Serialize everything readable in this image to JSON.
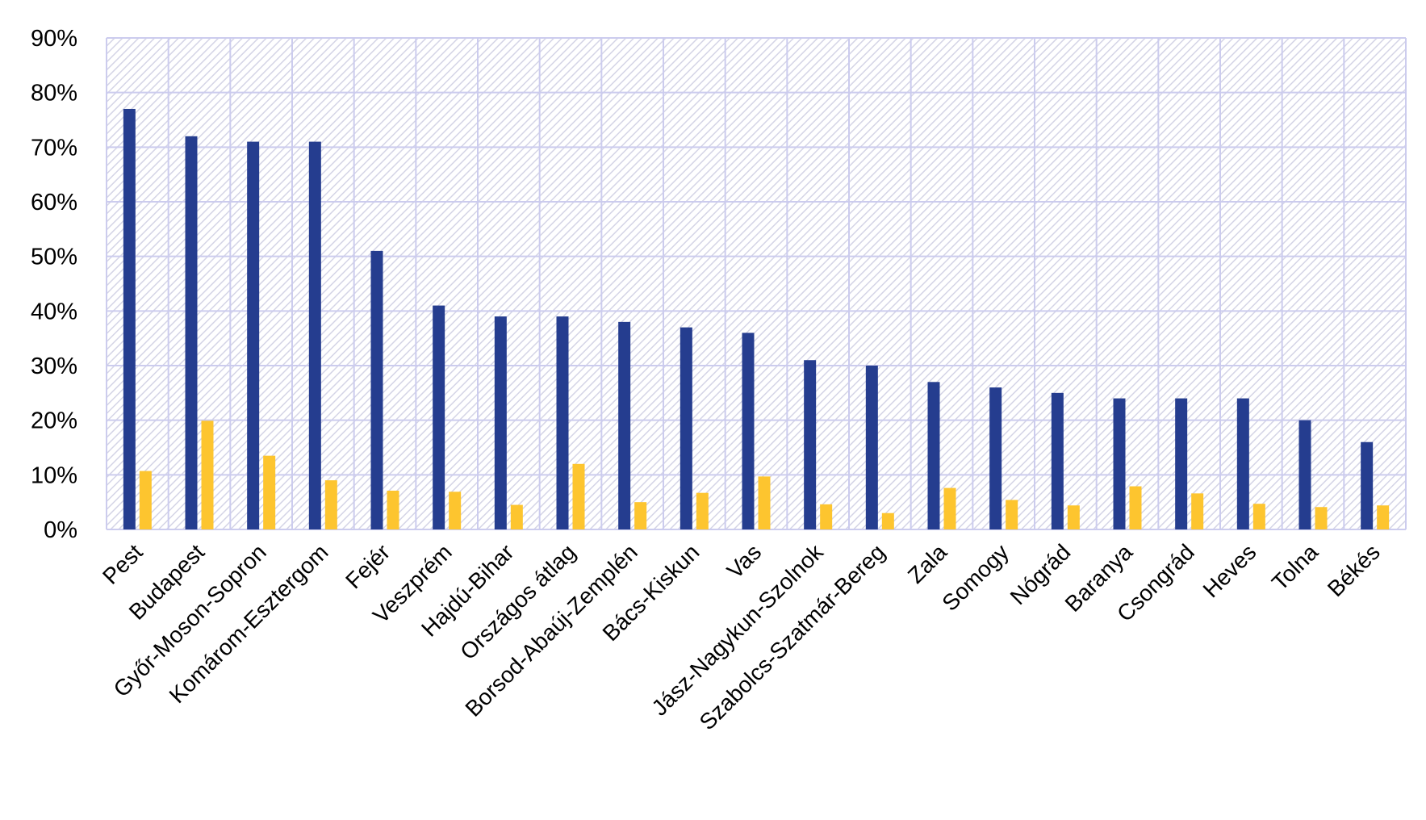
{
  "chart_data": {
    "type": "bar",
    "title": "",
    "xlabel": "",
    "ylabel": "",
    "ylim": [
      0,
      0.9
    ],
    "y_ticks": [
      "0%",
      "10%",
      "20%",
      "30%",
      "40%",
      "50%",
      "60%",
      "70%",
      "80%",
      "90%"
    ],
    "y_tick_values": [
      0,
      0.1,
      0.2,
      0.3,
      0.4,
      0.5,
      0.6,
      0.7,
      0.8,
      0.9
    ],
    "grid": "on (both axes)",
    "legend": "none",
    "categories": [
      "Pest",
      "Budapest",
      "Győr-Moson-Sopron",
      "Komárom-Esztergom",
      "Fejér",
      "Veszprém",
      "Hajdú-Bihar",
      "Országos átlag",
      "Borsod-Abaúj-Zemplén",
      "Bács-Kiskun",
      "Vas",
      "Jász-Nagykun-Szolnok",
      "Szabolcs-Szatmár-Bereg",
      "Zala",
      "Somogy",
      "Nógrád",
      "Baranya",
      "Csongrád",
      "Heves",
      "Tolna",
      "Békés"
    ],
    "series": [
      {
        "color": "#253d8f",
        "values": [
          0.77,
          0.72,
          0.71,
          0.71,
          0.51,
          0.41,
          0.39,
          0.39,
          0.38,
          0.37,
          0.36,
          0.31,
          0.3,
          0.27,
          0.26,
          0.25,
          0.24,
          0.24,
          0.24,
          0.2,
          0.16
        ]
      },
      {
        "color": "#fdc52f",
        "values": [
          0.107,
          0.199,
          0.135,
          0.09,
          0.071,
          0.069,
          0.045,
          0.12,
          0.05,
          0.067,
          0.097,
          0.046,
          0.03,
          0.076,
          0.054,
          0.044,
          0.079,
          0.066,
          0.047,
          0.041,
          0.044
        ]
      }
    ],
    "colors": {
      "grid": "#ccccee",
      "background_hatch": "#dcdcec"
    }
  }
}
